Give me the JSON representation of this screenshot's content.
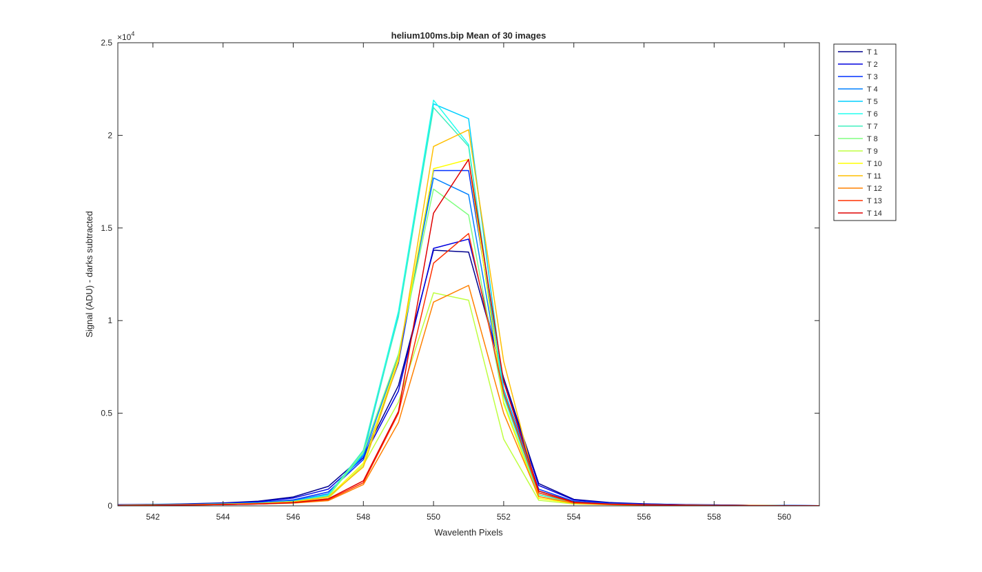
{
  "chart_data": {
    "type": "line",
    "title": "helium100ms.bip  Mean of 30 images",
    "xlabel": "Wavelenth Pixels",
    "ylabel": "Signal (ADU) - darks subtracted",
    "y_exponent_label": "×10",
    "y_exponent_power": "4",
    "xlim": [
      541,
      561
    ],
    "ylim": [
      0,
      25000
    ],
    "x_ticks": [
      542,
      544,
      546,
      548,
      550,
      552,
      554,
      556,
      558,
      560
    ],
    "x_tick_labels": [
      "542",
      "544",
      "546",
      "548",
      "550",
      "552",
      "554",
      "556",
      "558",
      "560"
    ],
    "y_ticks": [
      0,
      5000,
      10000,
      15000,
      20000,
      25000
    ],
    "y_tick_labels": [
      "0",
      "0.5",
      "1",
      "1.5",
      "2",
      "2.5"
    ],
    "grid": false,
    "legend_position": "outside-top-right",
    "x": [
      541,
      542,
      543,
      544,
      545,
      546,
      547,
      548,
      549,
      550,
      551,
      552,
      553,
      554,
      555,
      556,
      557,
      558,
      559,
      560,
      561
    ],
    "series": [
      {
        "name": "T 1",
        "color": "#00008F",
        "values": [
          60,
          80,
          110,
          160,
          250,
          480,
          1050,
          2700,
          6500,
          13800,
          13700,
          6900,
          1200,
          350,
          180,
          110,
          70,
          50,
          30,
          20,
          10
        ]
      },
      {
        "name": "T 2",
        "color": "#0000DF",
        "values": [
          50,
          70,
          100,
          140,
          220,
          420,
          900,
          2600,
          6200,
          13900,
          14400,
          6700,
          1100,
          320,
          160,
          100,
          70,
          50,
          30,
          20,
          10
        ]
      },
      {
        "name": "T 3",
        "color": "#0030FF",
        "values": [
          40,
          60,
          90,
          120,
          180,
          320,
          750,
          2500,
          7700,
          18100,
          18100,
          6300,
          900,
          250,
          130,
          80,
          50,
          40,
          30,
          20,
          10
        ]
      },
      {
        "name": "T 4",
        "color": "#0080FF",
        "values": [
          40,
          60,
          80,
          110,
          160,
          280,
          650,
          2700,
          8100,
          17700,
          16800,
          6000,
          800,
          220,
          120,
          70,
          50,
          40,
          30,
          20,
          10
        ]
      },
      {
        "name": "T 5",
        "color": "#00CFFF",
        "values": [
          30,
          50,
          70,
          100,
          140,
          240,
          550,
          2800,
          10300,
          21700,
          20900,
          6300,
          700,
          200,
          100,
          60,
          40,
          30,
          20,
          10,
          10
        ]
      },
      {
        "name": "T 6",
        "color": "#20FFEF",
        "values": [
          30,
          50,
          70,
          100,
          140,
          240,
          600,
          3000,
          10500,
          21900,
          19500,
          6000,
          600,
          180,
          90,
          60,
          40,
          30,
          20,
          10,
          10
        ]
      },
      {
        "name": "T 7",
        "color": "#40EFBF",
        "values": [
          30,
          50,
          70,
          100,
          140,
          240,
          550,
          3000,
          10200,
          21500,
          19400,
          5900,
          600,
          170,
          90,
          60,
          40,
          30,
          20,
          10,
          10
        ]
      },
      {
        "name": "T 8",
        "color": "#80FF80",
        "values": [
          30,
          40,
          60,
          90,
          130,
          220,
          500,
          2900,
          8200,
          17100,
          15700,
          5600,
          500,
          150,
          80,
          50,
          40,
          30,
          20,
          10,
          10
        ]
      },
      {
        "name": "T 9",
        "color": "#BFFF40",
        "values": [
          20,
          40,
          50,
          80,
          110,
          180,
          400,
          2200,
          5600,
          11500,
          11100,
          3600,
          300,
          100,
          60,
          40,
          30,
          20,
          10,
          10,
          10
        ]
      },
      {
        "name": "T 10",
        "color": "#FFFF00",
        "values": [
          30,
          40,
          60,
          90,
          130,
          220,
          480,
          2300,
          8000,
          18200,
          18700,
          5500,
          400,
          130,
          70,
          50,
          30,
          20,
          20,
          10,
          10
        ]
      },
      {
        "name": "T 11",
        "color": "#FFBF00",
        "values": [
          30,
          40,
          60,
          90,
          130,
          220,
          480,
          2100,
          7800,
          19400,
          20300,
          7800,
          500,
          150,
          80,
          50,
          30,
          20,
          20,
          10,
          10
        ]
      },
      {
        "name": "T 12",
        "color": "#FF8000",
        "values": [
          20,
          30,
          50,
          70,
          100,
          150,
          280,
          1150,
          4500,
          11000,
          11900,
          5000,
          500,
          140,
          70,
          40,
          30,
          20,
          10,
          10,
          10
        ]
      },
      {
        "name": "T 13",
        "color": "#FF3000",
        "values": [
          20,
          30,
          50,
          70,
          100,
          170,
          330,
          1250,
          5000,
          13100,
          14700,
          6100,
          700,
          180,
          90,
          50,
          30,
          20,
          10,
          10,
          10
        ]
      },
      {
        "name": "T 14",
        "color": "#DF0000",
        "values": [
          20,
          30,
          50,
          70,
          100,
          170,
          380,
          1350,
          5100,
          15800,
          18700,
          6700,
          800,
          200,
          100,
          60,
          40,
          30,
          20,
          10,
          10
        ]
      }
    ]
  }
}
